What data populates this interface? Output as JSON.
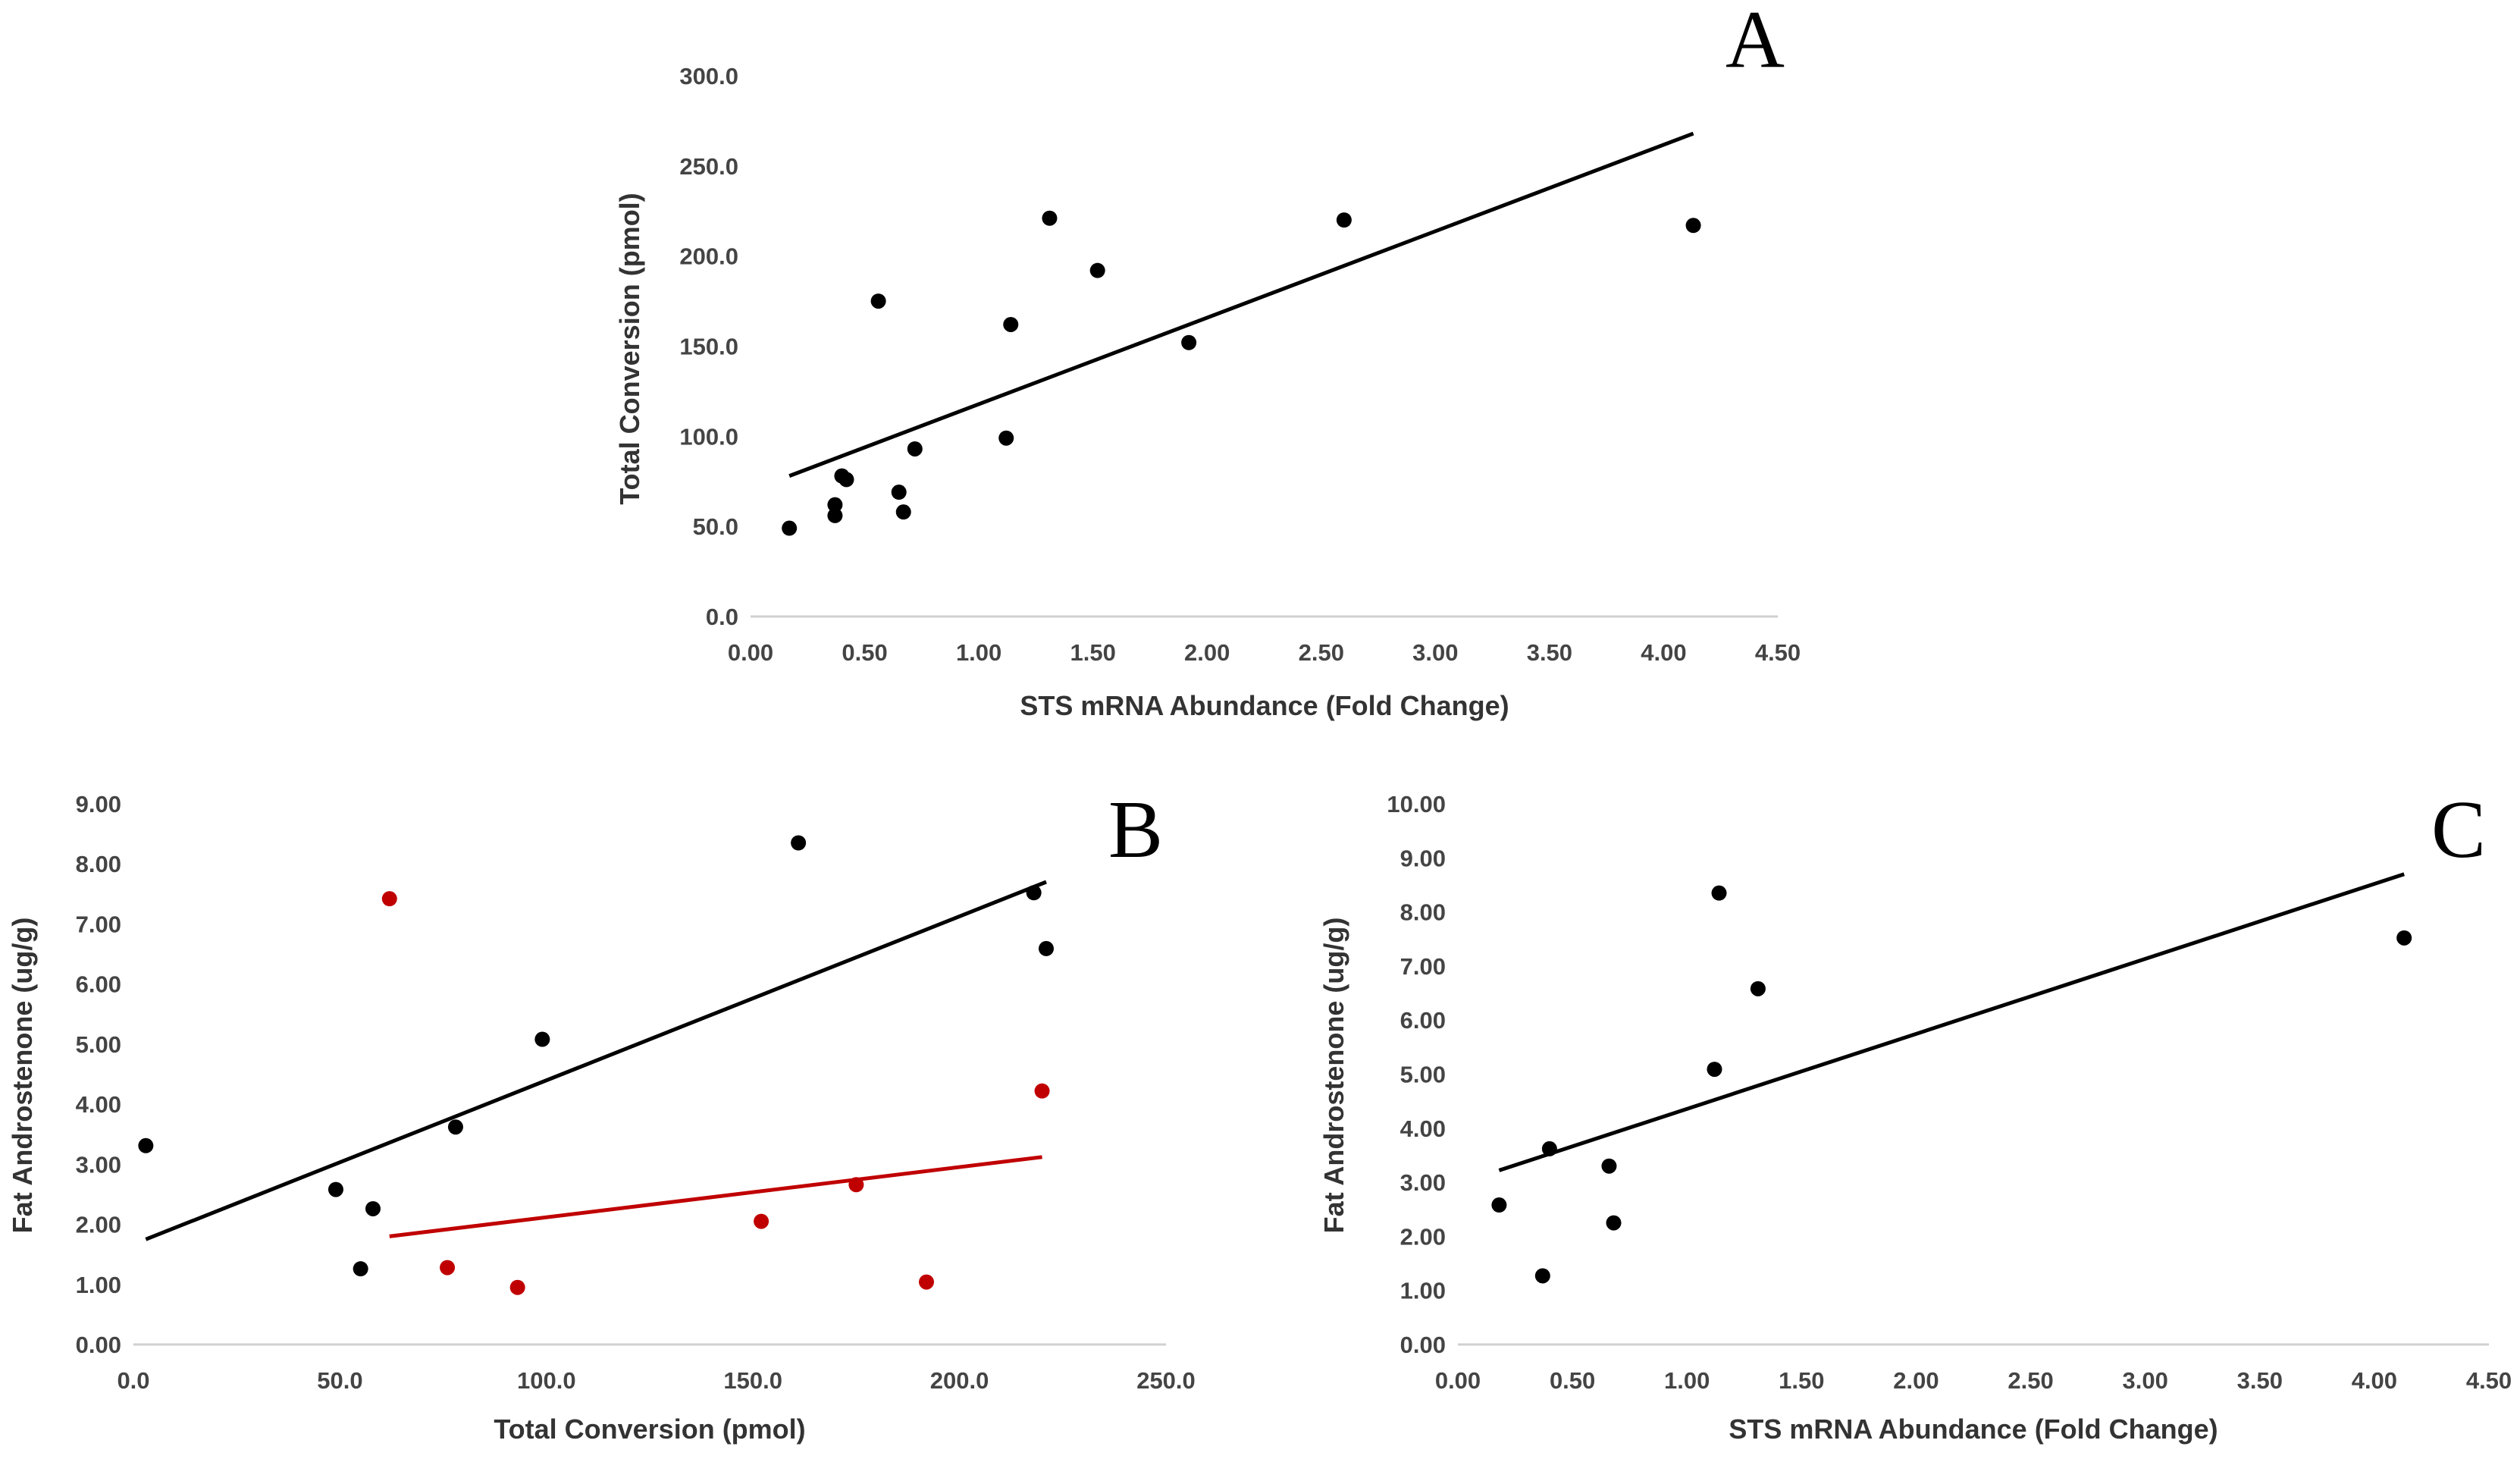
{
  "chart_data": [
    {
      "type": "scatter",
      "panel_label": "A",
      "xlabel": "STS mRNA Abundance (Fold Change)",
      "ylabel": "Total Conversion (pmol)",
      "xlim": [
        0,
        4.5
      ],
      "ylim": [
        0,
        300
      ],
      "x_ticks": [
        "0.00",
        "0.50",
        "1.00",
        "1.50",
        "2.00",
        "2.50",
        "3.00",
        "3.50",
        "4.00",
        "4.50"
      ],
      "y_ticks": [
        "0.0",
        "50.0",
        "100.0",
        "150.0",
        "200.0",
        "250.0",
        "300.0"
      ],
      "series": [
        {
          "name": "all",
          "color": "#000000",
          "points": [
            [
              0.17,
              49
            ],
            [
              0.37,
              56
            ],
            [
              0.37,
              62
            ],
            [
              0.4,
              78
            ],
            [
              0.42,
              76
            ],
            [
              0.56,
              175
            ],
            [
              0.65,
              69
            ],
            [
              0.67,
              58
            ],
            [
              0.72,
              93
            ],
            [
              1.12,
              99
            ],
            [
              1.14,
              162
            ],
            [
              1.31,
              221
            ],
            [
              1.52,
              192
            ],
            [
              1.92,
              152
            ],
            [
              2.6,
              220
            ],
            [
              4.13,
              217
            ]
          ],
          "trendline": [
            [
              0.17,
              78
            ],
            [
              4.13,
              268
            ]
          ]
        }
      ]
    },
    {
      "type": "scatter",
      "panel_label": "B",
      "xlabel": "Total Conversion (pmol)",
      "ylabel": "Fat Androstenone (ug/g)",
      "xlim": [
        0,
        250
      ],
      "ylim": [
        0,
        9
      ],
      "x_ticks": [
        "0.0",
        "50.0",
        "100.0",
        "150.0",
        "200.0",
        "250.0"
      ],
      "y_ticks": [
        "0.00",
        "1.00",
        "2.00",
        "3.00",
        "4.00",
        "5.00",
        "6.00",
        "7.00",
        "8.00",
        "9.00"
      ],
      "series": [
        {
          "name": "black",
          "color": "#000000",
          "points": [
            [
              3,
              3.31
            ],
            [
              49,
              2.58
            ],
            [
              55,
              1.26
            ],
            [
              58,
              2.26
            ],
            [
              78,
              3.62
            ],
            [
              99,
              5.08
            ],
            [
              161,
              8.35
            ],
            [
              218,
              7.52
            ],
            [
              221,
              6.59
            ]
          ],
          "trendline": [
            [
              3,
              1.75
            ],
            [
              221,
              7.7
            ]
          ]
        },
        {
          "name": "red",
          "color": "#c00000",
          "points": [
            [
              62,
              7.42
            ],
            [
              76,
              1.28
            ],
            [
              93,
              0.95
            ],
            [
              152,
              2.05
            ],
            [
              175,
              2.66
            ],
            [
              192,
              1.04
            ],
            [
              220,
              4.22
            ]
          ],
          "trendline": [
            [
              62,
              1.8
            ],
            [
              220,
              3.12
            ]
          ]
        }
      ]
    },
    {
      "type": "scatter",
      "panel_label": "C",
      "xlabel": "STS mRNA Abundance (Fold Change)",
      "ylabel": "Fat Androstenone (ug/g)",
      "xlim": [
        0,
        4.5
      ],
      "ylim": [
        0,
        10
      ],
      "x_ticks": [
        "0.00",
        "0.50",
        "1.00",
        "1.50",
        "2.00",
        "2.50",
        "3.00",
        "3.50",
        "4.00",
        "4.50"
      ],
      "y_ticks": [
        "0.00",
        "1.00",
        "2.00",
        "3.00",
        "4.00",
        "5.00",
        "6.00",
        "7.00",
        "8.00",
        "9.00",
        "10.00"
      ],
      "series": [
        {
          "name": "all",
          "color": "#000000",
          "points": [
            [
              0.18,
              2.58
            ],
            [
              0.37,
              1.27
            ],
            [
              0.4,
              3.62
            ],
            [
              0.66,
              3.3
            ],
            [
              0.68,
              2.25
            ],
            [
              1.12,
              5.09
            ],
            [
              1.14,
              8.35
            ],
            [
              1.31,
              6.58
            ],
            [
              4.13,
              7.52
            ]
          ],
          "trendline": [
            [
              0.18,
              3.22
            ],
            [
              4.13,
              8.7
            ]
          ]
        }
      ]
    }
  ]
}
